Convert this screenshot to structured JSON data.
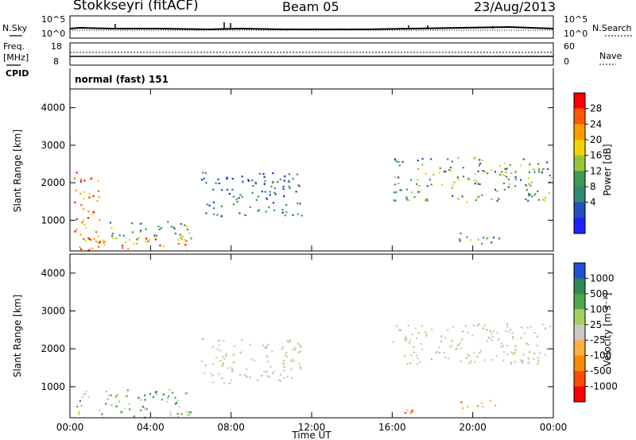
{
  "header": {
    "station": "Stokkseyri (fitACF)",
    "beam": "Beam 05",
    "date": "23/Aug/2013"
  },
  "status_panels": {
    "nsky_label": "N.Sky",
    "nsky_ticks": [
      "10^5",
      "10^0"
    ],
    "nsearch_label": "N.Search",
    "nsearch_ticks": [
      "10^5",
      "10^0"
    ],
    "freq_label_line1": "Freq.",
    "freq_label_line2": "[MHz]",
    "freq_ticks": [
      "18",
      "8"
    ],
    "nave_label": "Nave",
    "nave_ticks": [
      "60",
      "0"
    ],
    "cpid_label": "CPID",
    "cpid_value": "normal (fast) 151"
  },
  "chart_data": [
    {
      "type": "heatmap",
      "name": "power",
      "ylabel": "Slant Range [km]",
      "ylim": [
        180,
        4500
      ],
      "y_ticks": [
        "1000",
        "2000",
        "3000",
        "4000"
      ],
      "colorbar_label": "Power [dB]",
      "colorbar_ticks": [
        "28",
        "24",
        "20",
        "16",
        "12",
        "8",
        "4"
      ],
      "colorbar_colors": [
        "#ff0000",
        "#ff5a00",
        "#ff9c00",
        "#f2d400",
        "#98c63a",
        "#3e9a52",
        "#2f8a6e",
        "#1f4fc0",
        "#1d22ff"
      ],
      "regions": [
        {
          "t0": 0.2,
          "t1": 1.5,
          "r0": 200,
          "r1": 2300,
          "level": "high"
        },
        {
          "t0": 0.3,
          "t1": 6.0,
          "r0": 200,
          "r1": 550,
          "level": "high"
        },
        {
          "t0": 1.5,
          "t1": 6.0,
          "r0": 500,
          "r1": 1000,
          "level": "medium"
        },
        {
          "t0": 6.5,
          "t1": 11.5,
          "r0": 1100,
          "r1": 2300,
          "level": "low"
        },
        {
          "t0": 16.0,
          "t1": 23.9,
          "r0": 1500,
          "r1": 2700,
          "level": "medium"
        },
        {
          "t0": 19.0,
          "t1": 21.5,
          "r0": 400,
          "r1": 700,
          "level": "medium"
        }
      ]
    },
    {
      "type": "heatmap",
      "name": "velocity",
      "xlabel": "Time UT",
      "ylabel": "Slant Range [km]",
      "ylim": [
        180,
        4500
      ],
      "y_ticks": [
        "1000",
        "2000",
        "3000",
        "4000"
      ],
      "x_ticks": [
        "00:00",
        "04:00",
        "08:00",
        "12:00",
        "16:00",
        "20:00",
        "00:00"
      ],
      "colorbar_label": "Velocity [m s⁻¹]",
      "colorbar_ticks": [
        "1000",
        "500",
        "100",
        "25",
        "-25",
        "-100",
        "-500",
        "-1000"
      ],
      "colorbar_colors": [
        "#2050d8",
        "#2e8a5a",
        "#4ea64a",
        "#a8d060",
        "#c9c9c2",
        "#ffb040",
        "#ff8a00",
        "#ff4a00",
        "#ff0000"
      ],
      "regions": [
        {
          "t0": 0.3,
          "t1": 6.0,
          "r0": 200,
          "r1": 950,
          "level": "100"
        },
        {
          "t0": 6.5,
          "t1": 11.5,
          "r0": 1100,
          "r1": 2300,
          "level": "25"
        },
        {
          "t0": 16.0,
          "t1": 23.9,
          "r0": 1600,
          "r1": 2700,
          "level": "25"
        },
        {
          "t0": 15.5,
          "t1": 17.0,
          "r0": 300,
          "r1": 500,
          "level": "-500"
        },
        {
          "t0": 19.0,
          "t1": 21.5,
          "r0": 450,
          "r1": 650,
          "level": "-500"
        }
      ]
    }
  ]
}
